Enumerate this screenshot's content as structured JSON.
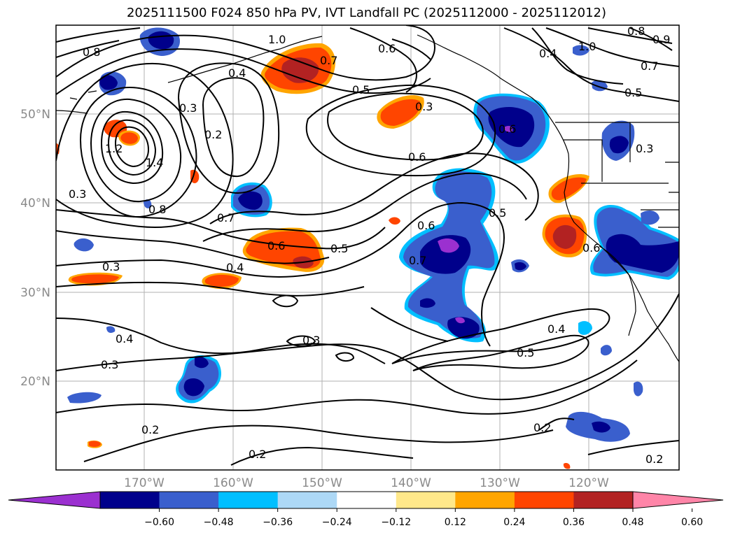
{
  "title": "2025111500 F024 850 hPa PV, IVT Landfall PC (2025112000 - 2025112012)",
  "map": {
    "lat_labels": [
      "50°N",
      "40°N",
      "30°N",
      "20°N"
    ],
    "lon_labels": [
      "170°W",
      "160°W",
      "150°W",
      "140°W",
      "130°W",
      "120°W"
    ],
    "pv_contour_labels": [
      "1.0",
      "0.8",
      "0.7",
      "0.6",
      "0.5",
      "0.4",
      "0.3",
      "0.2",
      "1.4",
      "1.2",
      "0.8",
      "0.7",
      "0.6",
      "0.5",
      "0.4",
      "0.3",
      "0.3",
      "0.4",
      "0.5",
      "0.2",
      "0.2",
      "0.2",
      "0.3",
      "0.4",
      "0.5",
      "0.6",
      "0.7",
      "0.6",
      "0.5",
      "0.6",
      "0.8",
      "0.9",
      "1.0",
      "0.7",
      "0.4",
      "0.3",
      "0.6"
    ],
    "colors": {
      "dark_purple": "#9b30d0",
      "navy": "#00008b",
      "royal_blue": "#3a5fcd",
      "deep_sky": "#00bfff",
      "light_blue": "#add8f6",
      "white": "#ffffff",
      "light_yellow": "#ffe88a",
      "orange": "#ffa500",
      "orange_red": "#ff4500",
      "firebrick": "#b22222",
      "pink": "#ff85a8"
    }
  },
  "colorbar": {
    "ticks": [
      "−0.60",
      "−0.48",
      "−0.36",
      "−0.24",
      "−0.12",
      "0.12",
      "0.24",
      "0.36",
      "0.48",
      "0.60"
    ],
    "bins": [
      "#9b30d0",
      "#00008b",
      "#3a5fcd",
      "#00bfff",
      "#add8f6",
      "#ffffff",
      "#ffe88a",
      "#ffa500",
      "#ff4500",
      "#b22222",
      "#ff85a8"
    ]
  }
}
